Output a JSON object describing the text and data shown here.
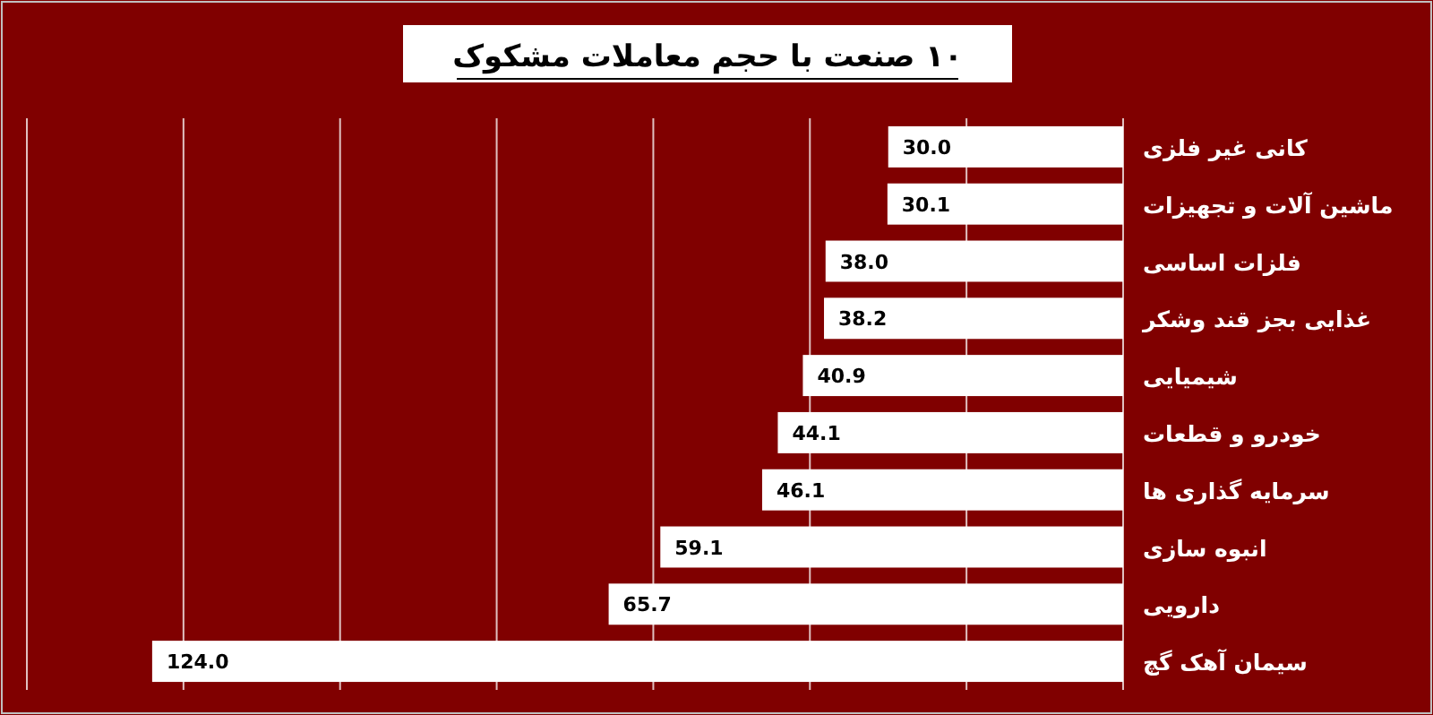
{
  "chart_data": {
    "type": "bar",
    "orientation": "horizontal",
    "title": "۱۰ صنعت با حجم معاملات مشکوک",
    "categories": [
      "کانی غیر فلزی",
      "ماشین آلات و  تجهیزات",
      "فلزات اساسی",
      "غذایی بجز قند وشکر",
      "شیمیایی",
      "خودرو و قطعات",
      "سرمایه گذاری ها",
      "انبوه سازی",
      "دارویی",
      "سیمان آهک گچ"
    ],
    "values": [
      30.0,
      30.1,
      38.0,
      38.2,
      40.9,
      44.1,
      46.1,
      59.1,
      65.7,
      124.0
    ],
    "value_labels": [
      "30.0",
      "30.1",
      "38.0",
      "38.2",
      "40.9",
      "44.1",
      "46.1",
      "59.1",
      "65.7",
      "124.0"
    ],
    "color": "#ffffff",
    "xlim": [
      140,
      0
    ],
    "xticks": [
      {
        "value": 0,
        "label": null
      },
      {
        "value": 20,
        "label": null
      },
      {
        "value": 40,
        "label": null
      },
      {
        "value": 60,
        "label": null
      },
      {
        "value": 80,
        "label": null
      },
      {
        "value": 100,
        "label": null
      },
      {
        "value": 120,
        "label": null
      },
      {
        "value": 140,
        "label": null
      }
    ],
    "grid": "x"
  }
}
